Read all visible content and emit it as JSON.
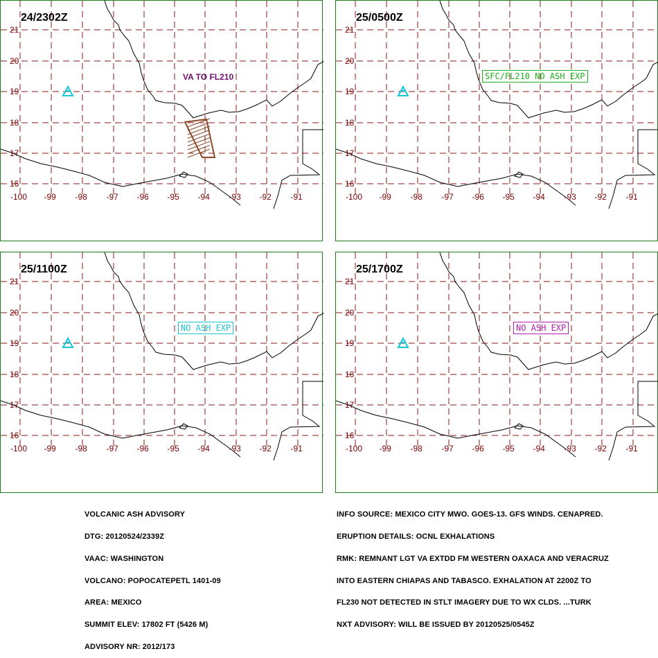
{
  "panels": [
    {
      "time": "24/2302Z",
      "label": {
        "text": "VA TO FL210",
        "color": "#6b0f6b",
        "boxed": false
      },
      "ash_polygon": true
    },
    {
      "time": "25/0500Z",
      "label": {
        "text": "SFC/FL210 NO ASH EXP",
        "color": "#1fb01f",
        "boxed": true
      },
      "ash_polygon": false
    },
    {
      "time": "25/1100Z",
      "label": {
        "text": "NO ASH EXP",
        "color": "#19c6d6",
        "boxed": true
      },
      "ash_polygon": false
    },
    {
      "time": "25/1700Z",
      "label": {
        "text": "NO ASH EXP",
        "color": "#b01fb0",
        "boxed": true
      },
      "ash_polygon": false
    }
  ],
  "map": {
    "lat_ticks": [
      "21",
      "20",
      "19",
      "18",
      "17",
      "16"
    ],
    "lon_ticks": [
      "-100",
      "-99",
      "-98",
      "-97",
      "-96",
      "-95",
      "-94",
      "-93",
      "-92",
      "-91"
    ],
    "grid_color": "#8b1a1a",
    "volcano_color": "#19c6d6",
    "ash_outline_color": "#8b4a2a"
  },
  "info_left": [
    "VOLCANIC ASH ADVISORY",
    "DTG: 20120524/2339Z",
    "VAAC: WASHINGTON",
    "VOLCANO: POPOCATEPETL 1401-09",
    "AREA: MEXICO",
    "SUMMIT ELEV: 17802 FT (5426 M)",
    "ADVISORY NR: 2012/173"
  ],
  "info_right": [
    "INFO SOURCE: MEXICO CITY MWO. GOES-13. GFS WINDS. CENAPRED.",
    "ERUPTION DETAILS: OCNL EXHALATIONS",
    "RMK: REMNANT LGT VA EXTDD FM WESTERN OAXACA AND VERACRUZ",
    "INTO EASTERN CHIAPAS AND TABASCO. EXHALATION AT 2200Z TO",
    "FL230 NOT DETECTED IN STLT IMAGERY DUE TO WX CLDS. ...TURK",
    "NXT ADVISORY: WILL BE ISSUED BY 20120525/0545Z"
  ]
}
